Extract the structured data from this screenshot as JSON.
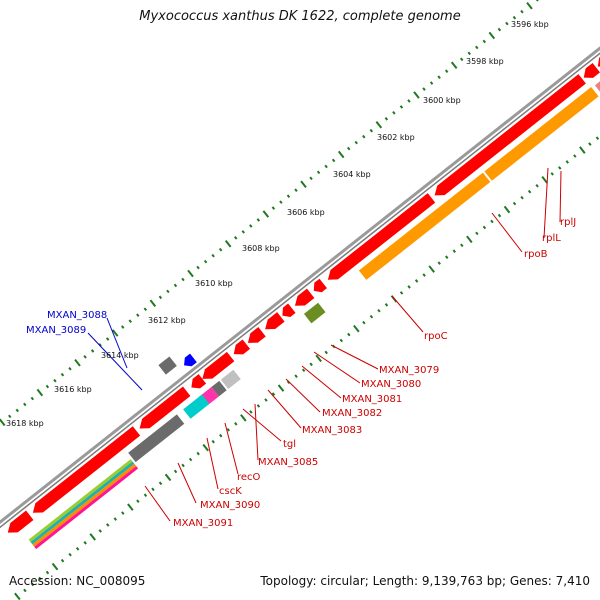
{
  "title": "Myxococcus xanthus DK 1622, complete genome",
  "footer": {
    "accession": "Accession: NC_008095",
    "summary": "Topology: circular; Length: 9,139,763 bp; Genes: 7,410"
  },
  "colors": {
    "backbone": "#8c8c8c",
    "tick_green": "#1f7a1f",
    "gene_red": "#ff0000",
    "gene_pink": "#f08080",
    "gene_orange": "#ff9900",
    "gene_olive": "#6b8e23",
    "gene_dark_gray": "#6b6b6b",
    "gene_light_gray": "#c0c0c0",
    "gene_cyan": "#00cccc",
    "gene_magenta": "#ff33aa",
    "gene_blue": "#0000ff",
    "label_red": "#cc0000",
    "label_blue": "#0000cc"
  },
  "scale_labels": [
    "3596 kbp",
    "3598 kbp",
    "3600 kbp",
    "3602 kbp",
    "3604 kbp",
    "3606 kbp",
    "3608 kbp",
    "3610 kbp",
    "3612 kbp",
    "3614 kbp",
    "3616 kbp",
    "3618 kbp"
  ],
  "gene_labels_red": [
    "rpoC",
    "rplJ",
    "rplL",
    "rpoB",
    "MXAN_3079",
    "MXAN_3080",
    "MXAN_3081",
    "MXAN_3082",
    "MXAN_3083",
    "MXAN_3085",
    "tgl",
    "recO",
    "cscK",
    "MXAN_3090",
    "MXAN_3091"
  ],
  "gene_labels_blue": [
    "MXAN_3088",
    "MXAN_3089"
  ]
}
